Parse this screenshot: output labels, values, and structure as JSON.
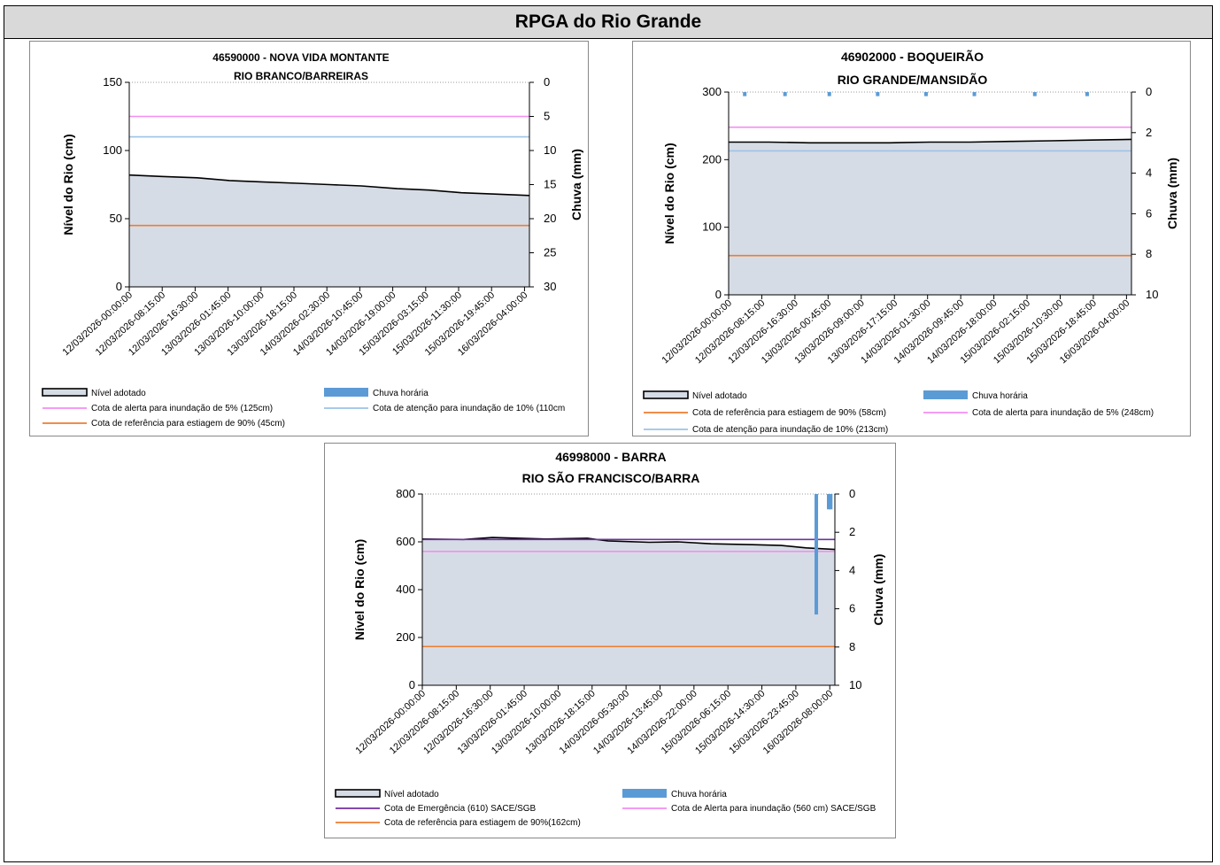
{
  "page_title": "RPGA do Rio Grande",
  "chart_data": [
    {
      "type": "line",
      "title": "46590000 - NOVA VIDA  MONTANTE",
      "subtitle": "RIO BRANCO/BARREIRAS",
      "ylabel": "Nível do Rio  (cm)",
      "y2label": "Chuva (mm)",
      "ylim": [
        0,
        150
      ],
      "yticks": [
        0,
        50,
        100,
        150
      ],
      "y2lim": [
        0,
        30
      ],
      "y2ticks": [
        0,
        5,
        10,
        15,
        20,
        25,
        30
      ],
      "y2_inverted": true,
      "x_ticks": [
        "12/03/2026-00:00:00",
        "12/03/2026-08:15:00",
        "12/03/2026-16:30:00",
        "13/03/2026-01:45:00",
        "13/03/2026-10:00:00",
        "13/03/2026-18:15:00",
        "14/03/2026-02:30:00",
        "14/03/2026-10:45:00",
        "14/03/2026-19:00:00",
        "15/03/2026-03:15:00",
        "15/03/2026-11:30:00",
        "15/03/2026-19:45:00",
        "16/03/2026-04:00:00"
      ],
      "level_series": {
        "name": "Nível adotado",
        "x_frac": [
          0,
          0.08,
          0.17,
          0.25,
          0.33,
          0.42,
          0.5,
          0.58,
          0.67,
          0.75,
          0.83,
          0.92,
          1
        ],
        "values": [
          82,
          81,
          80,
          78,
          77,
          76,
          75,
          74,
          72,
          71,
          69,
          68,
          67
        ]
      },
      "rain_series": {
        "name": "Chuva horária",
        "x_frac": [],
        "values": []
      },
      "ref_lines": [
        {
          "name": "Cota de alerta para inundação de 5% (125cm)",
          "value": 125,
          "color": "#f28ef2"
        },
        {
          "name": "Cota de atenção para inundação de 10% (110cm",
          "value": 110,
          "color": "#9dc3e6"
        },
        {
          "name": "Cota de referência para estiagem de 90% (45cm)",
          "value": 45,
          "color": "#ed7d31"
        }
      ],
      "legend": {
        "level": "Nível adotado",
        "rain": "Chuva horária"
      }
    },
    {
      "type": "line",
      "title": "46902000 - BOQUEIRÃO",
      "subtitle": "RIO GRANDE/MANSIDÃO",
      "ylabel": "Nível do Rio  (cm)",
      "y2label": "Chuva (mm)",
      "ylim": [
        0,
        300
      ],
      "yticks": [
        0,
        100,
        200,
        300
      ],
      "y2lim": [
        0,
        10
      ],
      "y2ticks": [
        0,
        2,
        4,
        6,
        8,
        10
      ],
      "y2_inverted": true,
      "x_ticks": [
        "12/03/2026-00:00:00",
        "12/03/2026-08:15:00",
        "12/03/2026-16:30:00",
        "13/03/2026-00:45:00",
        "13/03/2026-09:00:00",
        "13/03/2026-17:15:00",
        "14/03/2026-01:30:00",
        "14/03/2026-09:45:00",
        "14/03/2026-18:00:00",
        "15/03/2026-02:15:00",
        "15/03/2026-10:30:00",
        "15/03/2026-18:45:00",
        "16/03/2026-04:00:00"
      ],
      "level_series": {
        "name": "Nível adotado",
        "x_frac": [
          0,
          0.1,
          0.2,
          0.3,
          0.4,
          0.5,
          0.6,
          0.7,
          0.8,
          0.9,
          1
        ],
        "values": [
          226,
          226,
          225,
          225,
          225,
          226,
          226,
          227,
          228,
          229,
          230
        ]
      },
      "rain_series": {
        "name": "Chuva horária",
        "x_frac": [
          0.04,
          0.14,
          0.25,
          0.37,
          0.49,
          0.61,
          0.76,
          0.89
        ],
        "values": [
          0.2,
          0.2,
          0.2,
          0.2,
          0.2,
          0.2,
          0.2,
          0.2
        ]
      },
      "ref_lines": [
        {
          "name": "Cota de referência para estiagem de 90% (58cm)",
          "value": 58,
          "color": "#ed7d31"
        },
        {
          "name": "Cota de alerta para inundação de 5% (248cm)",
          "value": 248,
          "color": "#f28ef2"
        },
        {
          "name": "Cota de atenção para inundação de 10% (213cm)",
          "value": 213,
          "color": "#9dc3e6"
        }
      ],
      "legend": {
        "level": "Nível adotado",
        "rain": "Chuva horária"
      }
    },
    {
      "type": "line",
      "title": "46998000 - BARRA",
      "subtitle": "RIO SÃO FRANCISCO/BARRA",
      "ylabel": "Nível do Rio (cm)",
      "y2label": "Chuva (mm)",
      "ylim": [
        0,
        800
      ],
      "yticks": [
        0,
        200,
        400,
        600,
        800
      ],
      "y2lim": [
        0,
        10
      ],
      "y2ticks": [
        0,
        2,
        4,
        6,
        8,
        10
      ],
      "y2_inverted": true,
      "x_ticks": [
        "12/03/2026-00:00:00",
        "12/03/2026-08:15:00",
        "12/03/2026-16:30:00",
        "13/03/2026-01:45:00",
        "13/03/2026-10:00:00",
        "13/03/2026-18:15:00",
        "14/03/2026-05:30:00",
        "14/03/2026-13:45:00",
        "14/03/2026-22:00:00",
        "15/03/2026-06:15:00",
        "15/03/2026-14:30:00",
        "15/03/2026-23:45:00",
        "16/03/2026-08:00:00"
      ],
      "level_series": {
        "name": "Nível adotado",
        "x_frac": [
          0,
          0.1,
          0.17,
          0.3,
          0.4,
          0.45,
          0.55,
          0.62,
          0.7,
          0.8,
          0.87,
          0.93,
          1
        ],
        "values": [
          612,
          610,
          618,
          612,
          615,
          604,
          598,
          600,
          592,
          588,
          585,
          575,
          568
        ]
      },
      "rain_series": {
        "name": "Chuva horária",
        "x_frac": [
          0.955,
          0.985,
          0.99
        ],
        "values": [
          6.3,
          0.8,
          0.8
        ]
      },
      "ref_lines": [
        {
          "name": "Cota de Emergência (610) SACE/SGB",
          "value": 610,
          "color": "#7030a0"
        },
        {
          "name": "Cota de  Alerta para inundação (560 cm) SACE/SGB",
          "value": 560,
          "color": "#f28ef2"
        },
        {
          "name": "Cota de referência para estiagem de 90%(162cm)",
          "value": 162,
          "color": "#ed7d31"
        }
      ],
      "legend": {
        "level": "Nível adotado",
        "rain": "Chuva horária"
      }
    }
  ]
}
